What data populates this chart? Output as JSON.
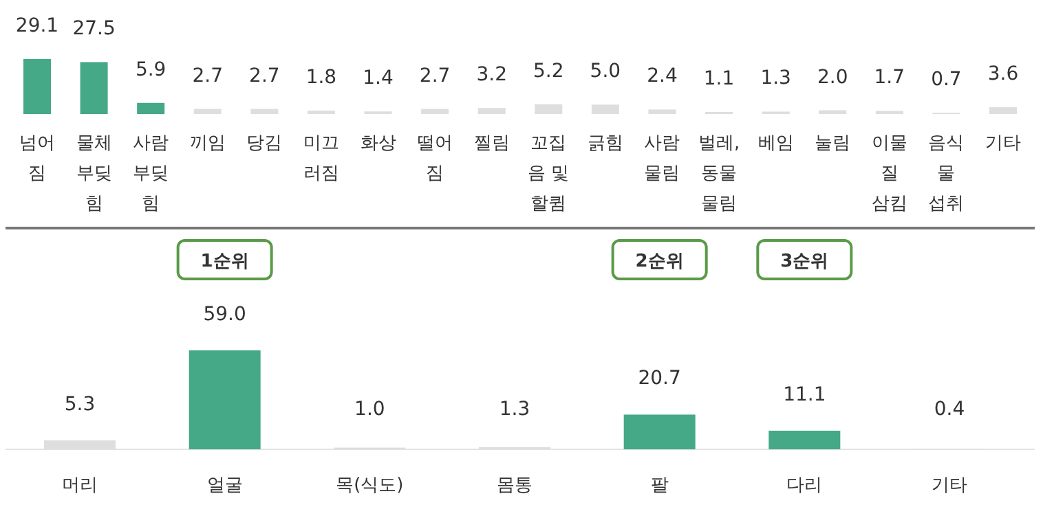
{
  "chart_data": [
    {
      "type": "bar",
      "categories": [
        "넘어짐",
        "물체 부딪힘",
        "사람 부딪힘",
        "끼임",
        "당김",
        "미끄러짐",
        "화상",
        "떨어짐",
        "찔림",
        "꼬집음 및 할큄",
        "긁힘",
        "사람 물림",
        "벌레, 동물 물림",
        "베임",
        "눌림",
        "이물질 삼킴",
        "음식물 섭취",
        "기타"
      ],
      "values": [
        29.1,
        27.5,
        5.9,
        2.7,
        2.7,
        1.8,
        1.4,
        2.7,
        3.2,
        5.2,
        5.0,
        2.4,
        1.1,
        1.3,
        2.0,
        1.7,
        0.7,
        3.6
      ],
      "value_labels": [
        "29.1",
        "27.5",
        "5.9",
        "2.7",
        "2.7",
        "1.8",
        "1.4",
        "2.7",
        "3.2",
        "5.2",
        "5.0",
        "2.4",
        "1.1",
        "1.3",
        "2.0",
        "1.7",
        "0.7",
        "3.6"
      ],
      "colors": [
        "#45a886",
        "#45a886",
        "#45a886",
        "#dedede",
        "#dedede",
        "#dedede",
        "#dedede",
        "#dedede",
        "#dedede",
        "#dedede",
        "#dedede",
        "#dedede",
        "#dedede",
        "#dedede",
        "#dedede",
        "#dedede",
        "#dedede",
        "#dedede"
      ]
    },
    {
      "type": "bar",
      "categories": [
        "머리",
        "얼굴",
        "목(식도)",
        "몸통",
        "팔",
        "다리",
        "기타"
      ],
      "values": [
        5.3,
        59.0,
        1.0,
        1.3,
        20.7,
        11.1,
        0.4
      ],
      "value_labels": [
        "5.3",
        "59.0",
        "1.0",
        "1.3",
        "20.7",
        "11.1",
        "0.4"
      ],
      "colors": [
        "#dedede",
        "#45a886",
        "#dedede",
        "#dedede",
        "#45a886",
        "#45a886",
        "#dedede"
      ],
      "annotations": [
        "1순위",
        "2순위",
        "3순위"
      ]
    }
  ]
}
